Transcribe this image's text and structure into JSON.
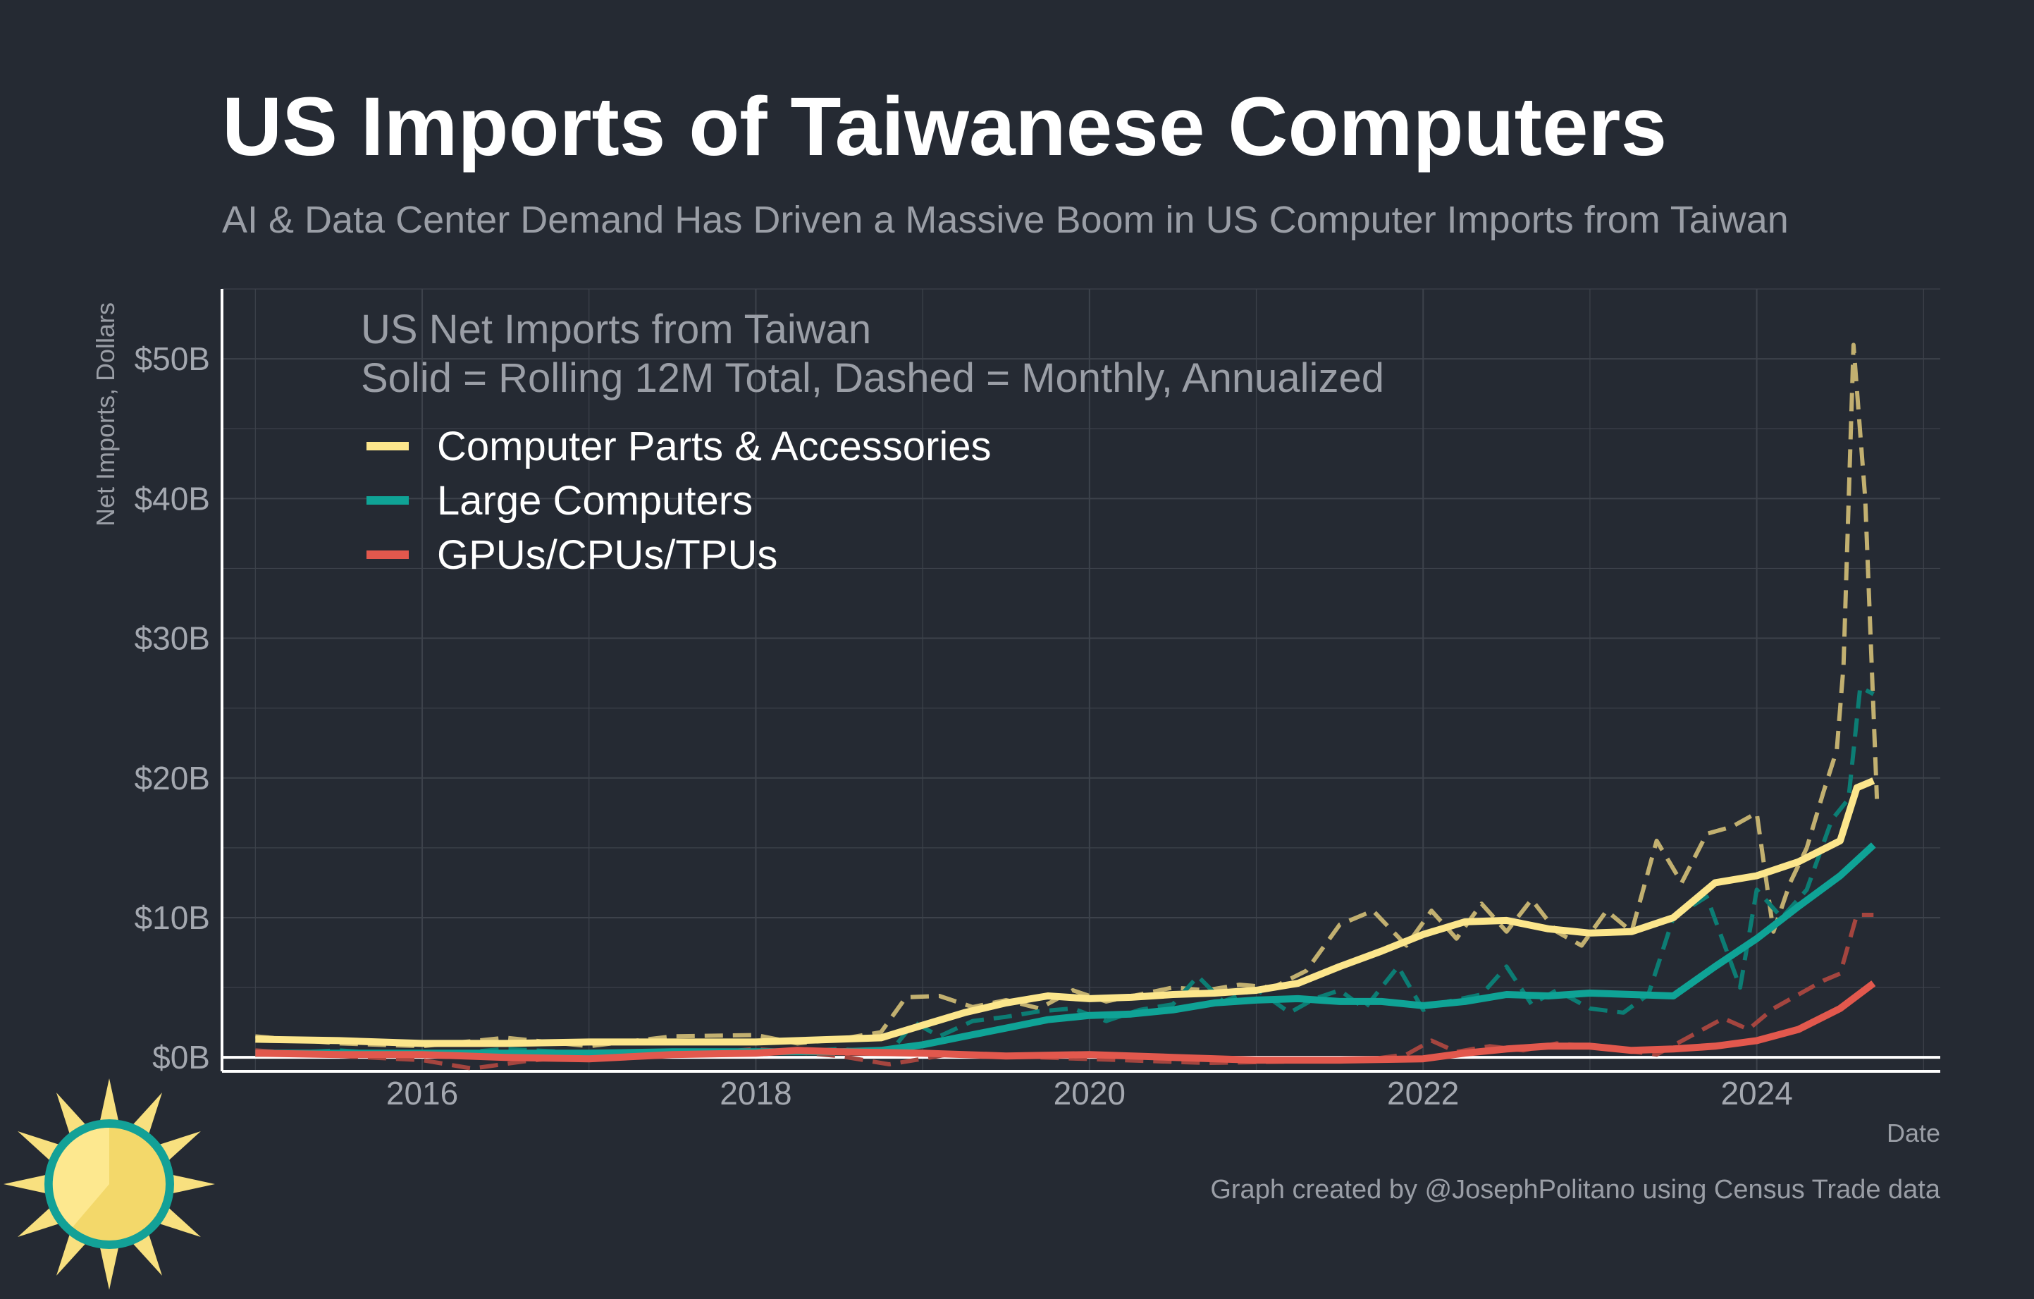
{
  "title": "US Imports of Taiwanese Computers",
  "subtitle": "AI & Data Center Demand Has Driven a Massive Boom in US Computer Imports from Taiwan",
  "caption": "Graph created by @JosephPolitano using Census Trade data",
  "icon": "sun-logo-icon",
  "colors": {
    "background": "#252a33",
    "grid": "#3d424b",
    "parts": "#fce68c",
    "parts_monthly": "#c2b070",
    "large": "#0fa396",
    "large_monthly": "#0c7d74",
    "gpus": "#e2584d",
    "gpus_monthly": "#a4453f",
    "logo_ring": "#13a197",
    "logo_sun": "#f8e07f"
  },
  "chart_data": {
    "type": "line",
    "title": "US Imports of Taiwanese Computers",
    "subtitle": "AI & Data Center Demand Has Driven a Massive Boom in US Computer Imports from Taiwan",
    "xlabel": "Date",
    "ylabel": "Net Imports, Dollars",
    "annotation": [
      "US Net Imports from Taiwan",
      "Solid = Rolling 12M Total, Dashed = Monthly, Annualized"
    ],
    "xlim": [
      2014.8,
      2025.1
    ],
    "ylim": [
      -1,
      55
    ],
    "x_ticks": [
      2016,
      2018,
      2020,
      2022,
      2024
    ],
    "x_tick_labels": [
      "2016",
      "2018",
      "2020",
      "2022",
      "2024"
    ],
    "y_ticks": [
      0,
      10,
      20,
      30,
      40,
      50
    ],
    "y_tick_labels": [
      "$0B",
      "$10B",
      "$20B",
      "$30B",
      "$40B",
      "$50B"
    ],
    "grid": true,
    "legend_position": "top-left",
    "series": [
      {
        "name": "Computer Parts & Accessories",
        "style": "solid",
        "color_key": "parts",
        "x": [
          2015.0,
          2015.5,
          2016.0,
          2016.5,
          2017.0,
          2017.5,
          2018.0,
          2018.5,
          2018.75,
          2019.0,
          2019.25,
          2019.5,
          2019.75,
          2020.0,
          2020.25,
          2020.5,
          2020.75,
          2021.0,
          2021.25,
          2021.5,
          2021.75,
          2022.0,
          2022.25,
          2022.5,
          2022.75,
          2023.0,
          2023.25,
          2023.5,
          2023.75,
          2024.0,
          2024.25,
          2024.5,
          2024.6,
          2024.7
        ],
        "y": [
          1.3,
          1.2,
          1.0,
          1.0,
          1.1,
          1.1,
          1.1,
          1.3,
          1.4,
          2.3,
          3.2,
          3.9,
          4.4,
          4.2,
          4.3,
          4.5,
          4.6,
          4.8,
          5.3,
          6.5,
          7.6,
          8.8,
          9.7,
          9.8,
          9.2,
          8.9,
          9.0,
          10.0,
          12.5,
          13.0,
          14.0,
          15.5,
          19.3,
          19.8
        ]
      },
      {
        "name": "Computer Parts & Accessories",
        "style": "dashed",
        "color_key": "parts_monthly",
        "x": [
          2015.0,
          2015.5,
          2016.0,
          2016.5,
          2017.0,
          2017.5,
          2018.0,
          2018.25,
          2018.5,
          2018.75,
          2018.9,
          2019.1,
          2019.3,
          2019.5,
          2019.7,
          2019.9,
          2020.1,
          2020.3,
          2020.5,
          2020.7,
          2020.9,
          2021.1,
          2021.3,
          2021.5,
          2021.7,
          2021.9,
          2022.05,
          2022.2,
          2022.35,
          2022.5,
          2022.65,
          2022.8,
          2022.95,
          2023.1,
          2023.25,
          2023.4,
          2023.55,
          2023.7,
          2023.85,
          2024.0,
          2024.1,
          2024.2,
          2024.3,
          2024.4,
          2024.48,
          2024.52,
          2024.58,
          2024.65,
          2024.72
        ],
        "y": [
          1.5,
          1.0,
          0.8,
          1.4,
          0.8,
          1.5,
          1.6,
          1.0,
          1.3,
          1.8,
          4.3,
          4.4,
          3.6,
          4.1,
          3.5,
          4.8,
          4.0,
          4.5,
          5.0,
          4.8,
          5.2,
          5.0,
          6.2,
          9.5,
          10.5,
          8.0,
          10.5,
          8.5,
          11.0,
          9.0,
          11.3,
          9.0,
          8.0,
          10.5,
          9.0,
          15.5,
          12.5,
          16.0,
          16.5,
          17.5,
          9.0,
          12.5,
          15.0,
          19.0,
          22.0,
          28.0,
          51.0,
          40.0,
          18.5
        ]
      },
      {
        "name": "Large Computers",
        "style": "solid",
        "color_key": "large",
        "x": [
          2015.0,
          2015.5,
          2016.0,
          2016.5,
          2017.0,
          2017.5,
          2018.0,
          2018.5,
          2018.75,
          2019.0,
          2019.25,
          2019.5,
          2019.75,
          2020.0,
          2020.25,
          2020.5,
          2020.75,
          2021.0,
          2021.25,
          2021.5,
          2021.75,
          2022.0,
          2022.25,
          2022.5,
          2022.75,
          2023.0,
          2023.25,
          2023.5,
          2023.75,
          2024.0,
          2024.25,
          2024.5,
          2024.7
        ],
        "y": [
          0.3,
          0.3,
          0.3,
          0.3,
          0.3,
          0.4,
          0.4,
          0.4,
          0.5,
          0.9,
          1.5,
          2.1,
          2.7,
          3.0,
          3.1,
          3.4,
          3.9,
          4.1,
          4.2,
          4.0,
          4.0,
          3.7,
          4.0,
          4.5,
          4.4,
          4.6,
          4.5,
          4.4,
          6.5,
          8.5,
          10.8,
          13.0,
          15.2
        ]
      },
      {
        "name": "Large Computers",
        "style": "dashed",
        "color_key": "large_monthly",
        "x": [
          2015.0,
          2015.5,
          2016.0,
          2016.5,
          2017.0,
          2017.5,
          2018.0,
          2018.5,
          2018.8,
          2018.95,
          2019.1,
          2019.3,
          2019.5,
          2019.7,
          2019.9,
          2020.1,
          2020.3,
          2020.5,
          2020.65,
          2020.8,
          2021.0,
          2021.2,
          2021.35,
          2021.5,
          2021.65,
          2021.85,
          2022.0,
          2022.15,
          2022.35,
          2022.5,
          2022.65,
          2022.8,
          2023.0,
          2023.2,
          2023.35,
          2023.5,
          2023.7,
          2023.9,
          2024.0,
          2024.15,
          2024.3,
          2024.45,
          2024.55,
          2024.62,
          2024.7
        ],
        "y": [
          0.2,
          0.5,
          0.1,
          0.6,
          0.3,
          0.4,
          0.2,
          0.6,
          0.3,
          2.5,
          1.5,
          2.6,
          2.9,
          3.3,
          3.5,
          2.6,
          3.4,
          3.8,
          5.8,
          4.0,
          4.9,
          3.2,
          4.2,
          4.8,
          3.5,
          6.5,
          3.4,
          4.0,
          4.5,
          6.5,
          3.8,
          4.8,
          3.5,
          3.2,
          4.5,
          10.0,
          11.5,
          5.0,
          12.0,
          10.0,
          12.0,
          17.0,
          18.5,
          26.5,
          26.0
        ]
      },
      {
        "name": "GPUs/CPUs/TPUs",
        "style": "solid",
        "color_key": "gpus",
        "x": [
          2015.0,
          2015.5,
          2016.0,
          2016.5,
          2017.0,
          2017.5,
          2018.0,
          2018.25,
          2018.5,
          2019.0,
          2019.5,
          2020.0,
          2020.5,
          2021.0,
          2021.5,
          2022.0,
          2022.25,
          2022.5,
          2022.75,
          2023.0,
          2023.25,
          2023.5,
          2023.75,
          2024.0,
          2024.25,
          2024.5,
          2024.7
        ],
        "y": [
          0.3,
          0.2,
          0.2,
          0.0,
          -0.1,
          0.2,
          0.3,
          0.5,
          0.4,
          0.3,
          0.1,
          0.2,
          0.0,
          -0.2,
          -0.2,
          -0.1,
          0.3,
          0.6,
          0.8,
          0.8,
          0.5,
          0.6,
          0.8,
          1.2,
          2.0,
          3.5,
          5.3
        ]
      },
      {
        "name": "GPUs/CPUs/TPUs",
        "style": "dashed",
        "color_key": "gpus_monthly",
        "x": [
          2015.0,
          2015.5,
          2016.0,
          2016.3,
          2016.6,
          2017.0,
          2017.5,
          2018.0,
          2018.5,
          2018.8,
          2019.2,
          2019.7,
          2020.2,
          2020.7,
          2021.2,
          2021.7,
          2021.9,
          2022.05,
          2022.2,
          2022.4,
          2022.6,
          2022.8,
          2023.0,
          2023.2,
          2023.4,
          2023.6,
          2023.8,
          2023.95,
          2024.1,
          2024.25,
          2024.4,
          2024.5,
          2024.6,
          2024.7
        ],
        "y": [
          0.5,
          0.1,
          -0.2,
          -0.8,
          -0.3,
          0.2,
          0.1,
          0.6,
          0.1,
          -0.5,
          0.3,
          0.0,
          -0.2,
          -0.4,
          -0.3,
          -0.1,
          0.2,
          1.2,
          0.4,
          0.8,
          0.5,
          1.0,
          0.8,
          0.5,
          0.2,
          1.5,
          2.8,
          2.0,
          3.5,
          4.5,
          5.5,
          6.0,
          10.2,
          10.2
        ]
      }
    ]
  }
}
